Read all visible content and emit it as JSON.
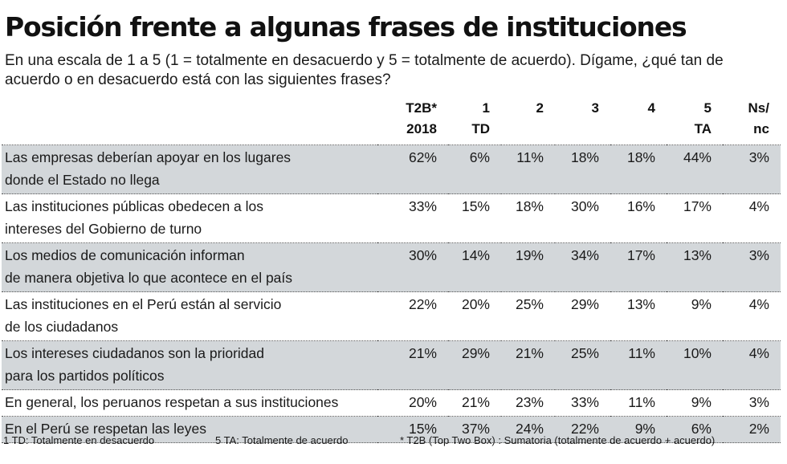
{
  "title": "Posición frente a algunas frases de instituciones",
  "subtitle": "En una escala de 1 a 5 (1 = totalmente en desacuerdo y 5 = totalmente de acuerdo). Dígame, ¿qué tan de acuerdo o en desacuerdo está con las siguientes frases?",
  "columns": [
    {
      "l1": "T2B*",
      "l2": "2018"
    },
    {
      "l1": "1",
      "l2": "TD"
    },
    {
      "l1": "2",
      "l2": ""
    },
    {
      "l1": "3",
      "l2": ""
    },
    {
      "l1": "4",
      "l2": ""
    },
    {
      "l1": "5",
      "l2": "TA"
    },
    {
      "l1": "Ns/",
      "l2": "nc"
    }
  ],
  "rows": [
    {
      "l1": "Las empresas deberían apoyar en los lugares",
      "l2": "donde el Estado no llega",
      "shaded": true,
      "v": [
        "62%",
        "6%",
        "11%",
        "18%",
        "18%",
        "44%",
        "3%"
      ]
    },
    {
      "l1": "Las instituciones públicas obedecen a los",
      "l2": "intereses del Gobierno de turno",
      "shaded": false,
      "v": [
        "33%",
        "15%",
        "18%",
        "30%",
        "16%",
        "17%",
        "4%"
      ]
    },
    {
      "l1": "Los medios de comunicación informan",
      "l2": "de manera objetiva lo que acontece en el país",
      "shaded": true,
      "v": [
        "30%",
        "14%",
        "19%",
        "34%",
        "17%",
        "13%",
        "3%"
      ]
    },
    {
      "l1": "Las instituciones en el Perú están al servicio",
      "l2": "de los ciudadanos",
      "shaded": false,
      "v": [
        "22%",
        "20%",
        "25%",
        "29%",
        "13%",
        "9%",
        "4%"
      ]
    },
    {
      "l1": "Los intereses ciudadanos son la prioridad",
      "l2": "para los partidos políticos",
      "shaded": true,
      "v": [
        "21%",
        "29%",
        "21%",
        "25%",
        "11%",
        "10%",
        "4%"
      ]
    },
    {
      "l1": "En general, los peruanos respetan a sus instituciones",
      "l2": "",
      "shaded": false,
      "v": [
        "20%",
        "21%",
        "23%",
        "33%",
        "11%",
        "9%",
        "3%"
      ]
    },
    {
      "l1": "En el Perú se respetan las leyes",
      "l2": "",
      "shaded": true,
      "v": [
        "15%",
        "37%",
        "24%",
        "22%",
        "9%",
        "6%",
        "2%"
      ]
    }
  ],
  "footnotes": {
    "td": "1 TD: Totalmente en desacuerdo",
    "ta": "5 TA: Totalmente de acuerdo",
    "t2b": "* T2B (Top Two Box) : Sumatoria (totalmente de acuerdo + acuerdo)"
  }
}
